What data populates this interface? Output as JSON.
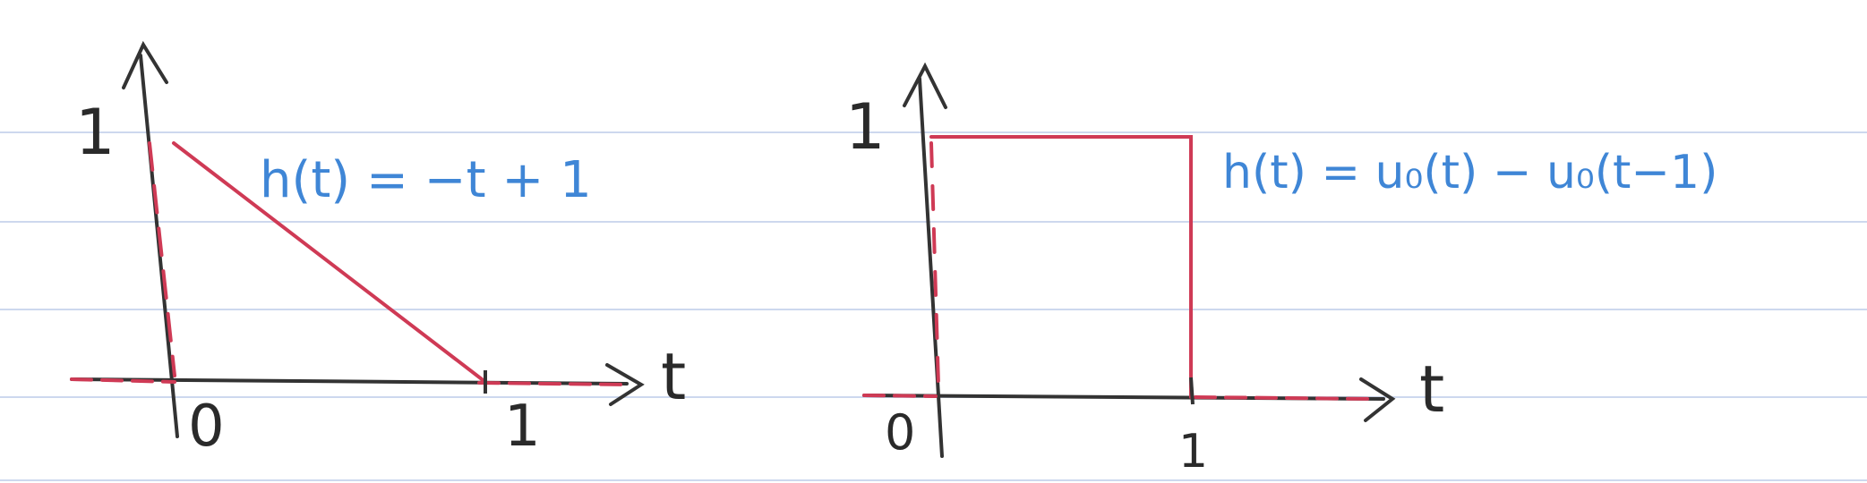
{
  "colors": {
    "paper": "#ffffff",
    "rule_line": "#cdd8ee",
    "axis_ink": "#333333",
    "red_ink": "#cf3a55",
    "blue_ink": "#3f86d6"
  },
  "diagrams": [
    {
      "type": "line",
      "function_label": "h(t) = −t + 1",
      "y_tick_label": "1",
      "origin_label": "0",
      "x_tick_label": "1",
      "x_axis_label": "t",
      "points": [
        [
          0,
          1
        ],
        [
          1,
          0
        ]
      ],
      "zero_dashed_before": true,
      "zero_dashed_after": true
    },
    {
      "type": "line",
      "function_label": "h(t) = u₀(t) − u₀(t−1)",
      "y_tick_label": "1",
      "origin_label": "0",
      "x_tick_label": "1",
      "x_axis_label": "t",
      "points": [
        [
          0,
          1
        ],
        [
          1,
          1
        ],
        [
          1,
          0
        ]
      ],
      "zero_dashed_before": true,
      "zero_dashed_after": true
    }
  ]
}
